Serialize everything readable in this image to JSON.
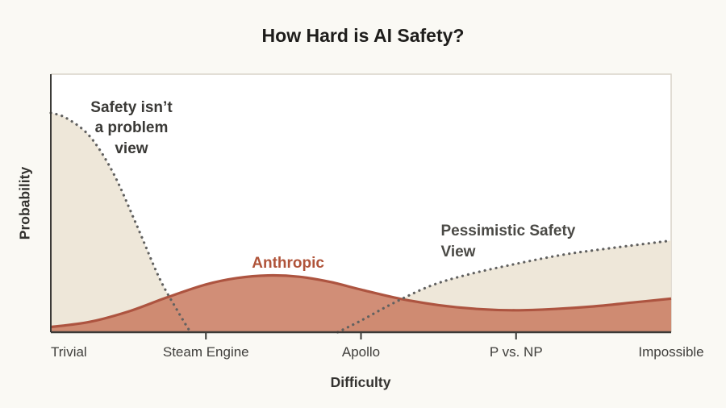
{
  "chart_data": {
    "type": "area",
    "title": "How Hard is AI Safety?",
    "xlabel": "Difficulty",
    "ylabel": "Probability",
    "xlim": [
      0,
      4
    ],
    "ylim": [
      0,
      1
    ],
    "grid": false,
    "legend": "inline-annotations",
    "x_ticks": [
      {
        "value": 0,
        "label": "Trivial"
      },
      {
        "value": 1,
        "label": "Steam Engine"
      },
      {
        "value": 2,
        "label": "Apollo"
      },
      {
        "value": 3,
        "label": "P vs. NP"
      },
      {
        "value": 4,
        "label": "Impossible"
      }
    ],
    "tick_marks_at": [
      1,
      2,
      3
    ],
    "colors": {
      "page_bg": "#faf9f4",
      "plot_bg": "#ffffff",
      "axis": "#3b3a37",
      "frame": "#d8d3c8",
      "tick_text": "#3f3e3b"
    },
    "series": [
      {
        "id": "safety-isnt-a-problem-view",
        "name": "Safety isn't a problem view",
        "line_style": "dotted",
        "line_color": "#616160",
        "fill_color": "#ece4d5",
        "fill_opacity": 0.9,
        "x": [
          0,
          0.1,
          0.25,
          0.4,
          0.55,
          0.7,
          0.82,
          0.9
        ],
        "y": [
          0.85,
          0.83,
          0.76,
          0.62,
          0.42,
          0.21,
          0.08,
          0.0
        ]
      },
      {
        "id": "pessimistic-safety-view",
        "name": "Pessimistic Safety View",
        "line_style": "dotted",
        "line_color": "#616160",
        "fill_color": "#ece4d5",
        "fill_opacity": 0.9,
        "x": [
          1.85,
          2.0,
          2.2,
          2.45,
          2.7,
          3.0,
          3.3,
          3.6,
          4.0
        ],
        "y": [
          0.0,
          0.045,
          0.11,
          0.18,
          0.225,
          0.265,
          0.3,
          0.325,
          0.355
        ]
      },
      {
        "id": "anthropic",
        "name": "Anthropic",
        "line_style": "solid",
        "line_color": "#ad5440",
        "fill_color": "#c97a5f",
        "fill_opacity": 0.85,
        "x": [
          0,
          0.25,
          0.5,
          0.75,
          1.0,
          1.2,
          1.4,
          1.6,
          1.8,
          2.0,
          2.25,
          2.5,
          2.75,
          3.0,
          3.25,
          3.5,
          3.75,
          4.0
        ],
        "y": [
          0.02,
          0.04,
          0.08,
          0.135,
          0.185,
          0.21,
          0.22,
          0.215,
          0.195,
          0.165,
          0.13,
          0.105,
          0.09,
          0.085,
          0.09,
          0.1,
          0.115,
          0.13
        ]
      }
    ],
    "annotations": [
      {
        "text": "Safety isn’t\na problem\nview",
        "x": 0.52,
        "y": 0.91,
        "align": "center",
        "color": "#3a3936"
      },
      {
        "text": "Anthropic",
        "x": 1.53,
        "y": 0.305,
        "align": "center",
        "color": "#b0543a"
      },
      {
        "text": "Pessimistic Safety\nView",
        "x": 2.515,
        "y": 0.43,
        "align": "left",
        "color": "#4b4a46"
      }
    ]
  }
}
